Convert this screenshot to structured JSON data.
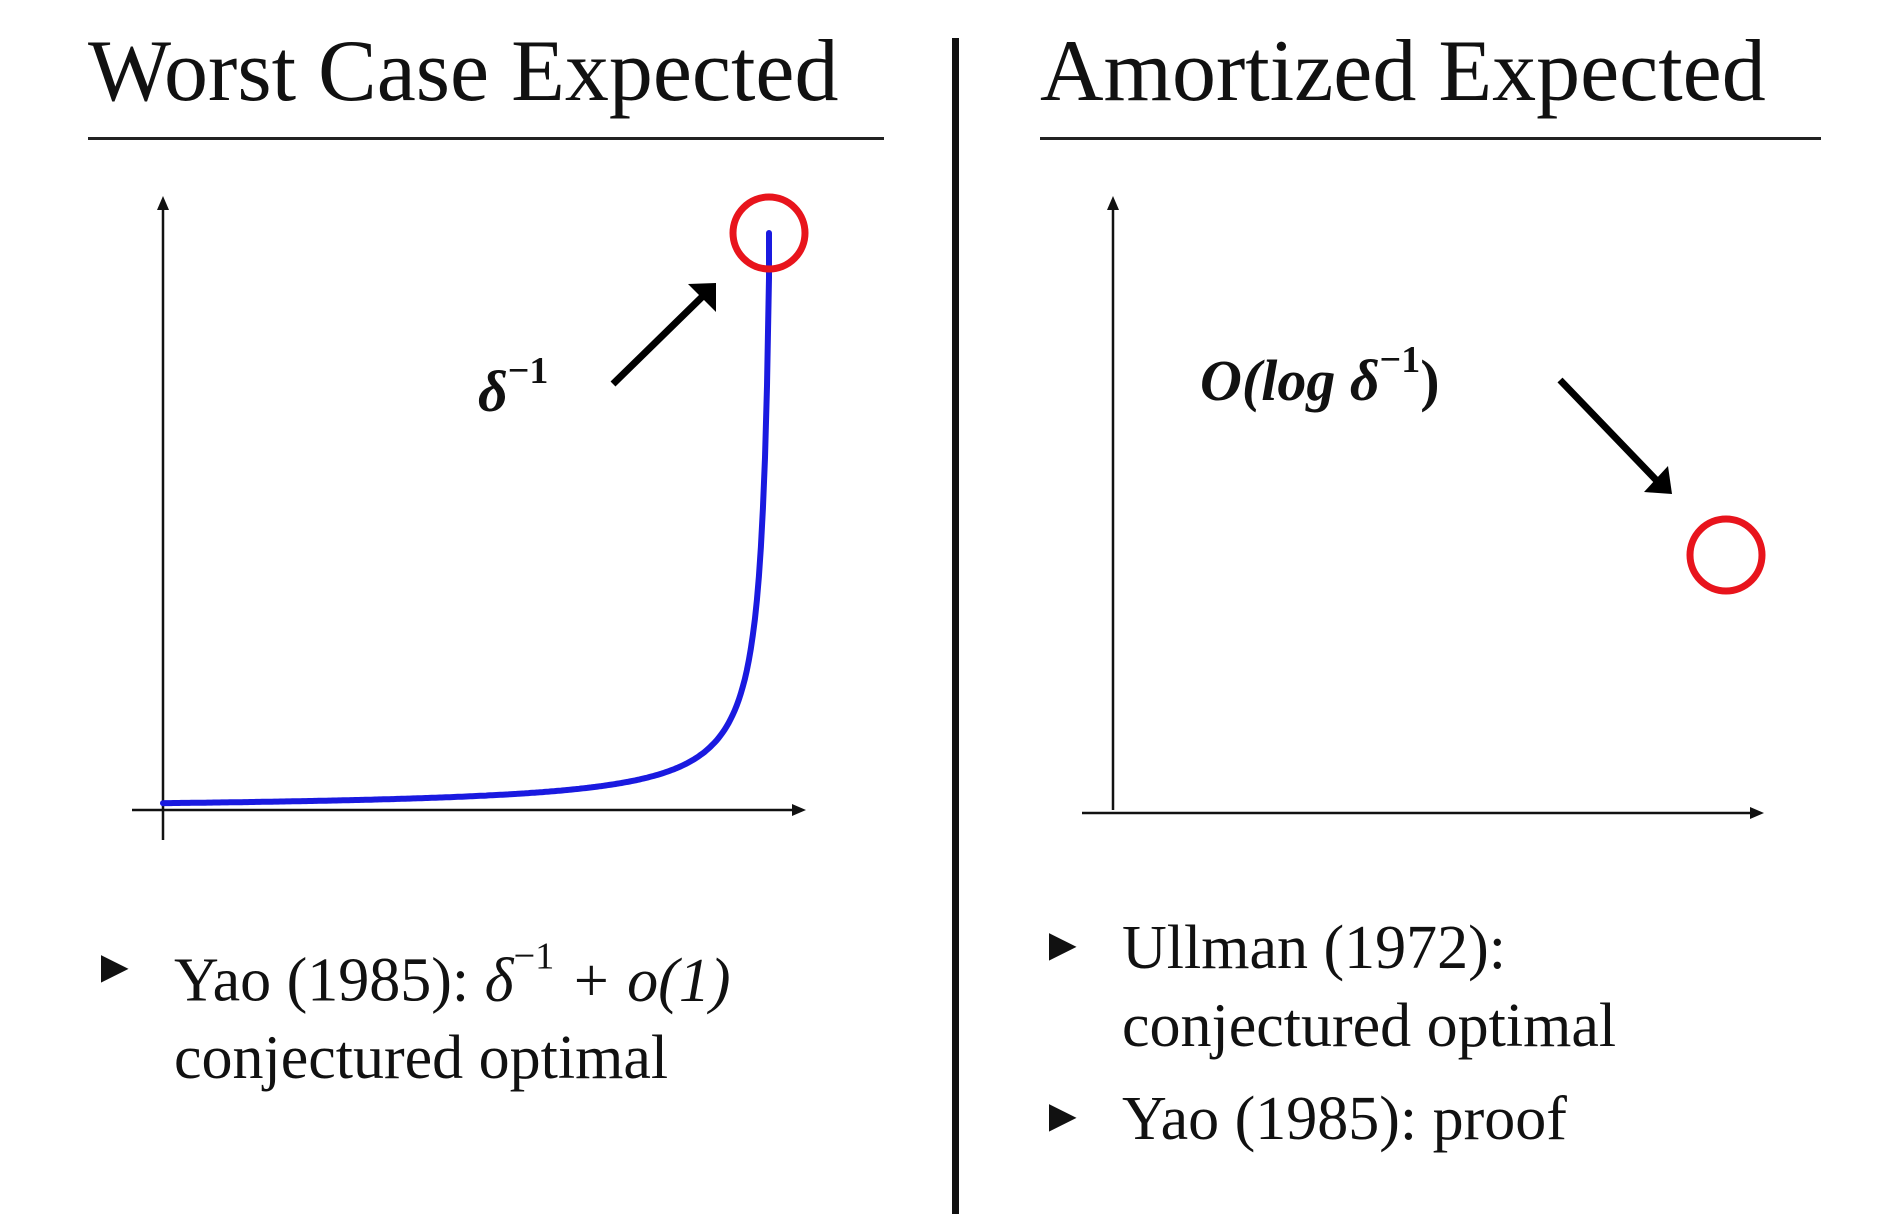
{
  "left": {
    "title": "Worst Case Expected",
    "annotation": {
      "base": "δ",
      "exp": "−1"
    },
    "bullets": [
      {
        "marker": "►",
        "author": "Yao (1985):",
        "formula_base": "δ",
        "formula_exp": "−1",
        "formula_rest": " + o(1)",
        "line2": "conjectured optimal"
      }
    ]
  },
  "right": {
    "title": "Amortized Expected",
    "annotation": {
      "prefix": "O(log ",
      "base": "δ",
      "exp": "−1",
      "suffix": ")"
    },
    "bullets": [
      {
        "marker": "►",
        "line1": "Ullman (1972):",
        "line2": "conjectured optimal"
      },
      {
        "marker": "►",
        "line1": "Yao (1985): proof"
      }
    ]
  },
  "colors": {
    "curve": "#1a1ae0",
    "highlight": "#e8141c",
    "axis": "#111111",
    "arrow": "#000000"
  },
  "curves": {
    "left_kind": "hyperbolic-blowup",
    "right_kind": "logarithmic-blowup"
  }
}
